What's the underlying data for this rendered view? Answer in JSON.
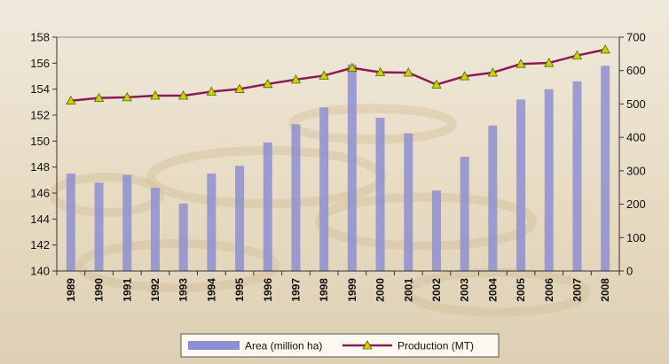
{
  "chart_data": {
    "type": "bar",
    "categories": [
      "1989",
      "1990",
      "1991",
      "1992",
      "1993",
      "1994",
      "1995",
      "1996",
      "1997",
      "1998",
      "1999",
      "2000",
      "2001",
      "2002",
      "2003",
      "2004",
      "2005",
      "2006",
      "2007",
      "2008"
    ],
    "series": [
      {
        "name": "Area (million ha)",
        "type": "bar",
        "axis": "left",
        "color": "#8e8fd2",
        "values": [
          147.5,
          146.8,
          147.4,
          146.4,
          145.2,
          147.5,
          148.1,
          149.9,
          151.3,
          152.6,
          155.9,
          151.8,
          150.6,
          146.2,
          148.8,
          151.2,
          153.2,
          154.0,
          154.6,
          155.8
        ]
      },
      {
        "name": "Production (MT)",
        "type": "line",
        "axis": "right",
        "color": "#8b1a5a",
        "marker_color": "#c8d400",
        "values": [
          510,
          518,
          520,
          525,
          525,
          537,
          545,
          560,
          573,
          585,
          608,
          595,
          594,
          558,
          583,
          594,
          620,
          623,
          645,
          663
        ]
      }
    ],
    "ylim_left": [
      140,
      158
    ],
    "yticks_left": [
      "158",
      "156",
      "154",
      "152",
      "150",
      "148",
      "146",
      "144",
      "142",
      "140"
    ],
    "ylim_right": [
      0,
      700
    ],
    "yticks_right": [
      "700",
      "600",
      "500",
      "400",
      "300",
      "200",
      "100",
      "0"
    ],
    "legend": {
      "position": "bottom",
      "items": [
        "Area (million ha)",
        "Production (MT)"
      ]
    },
    "grid": false
  }
}
